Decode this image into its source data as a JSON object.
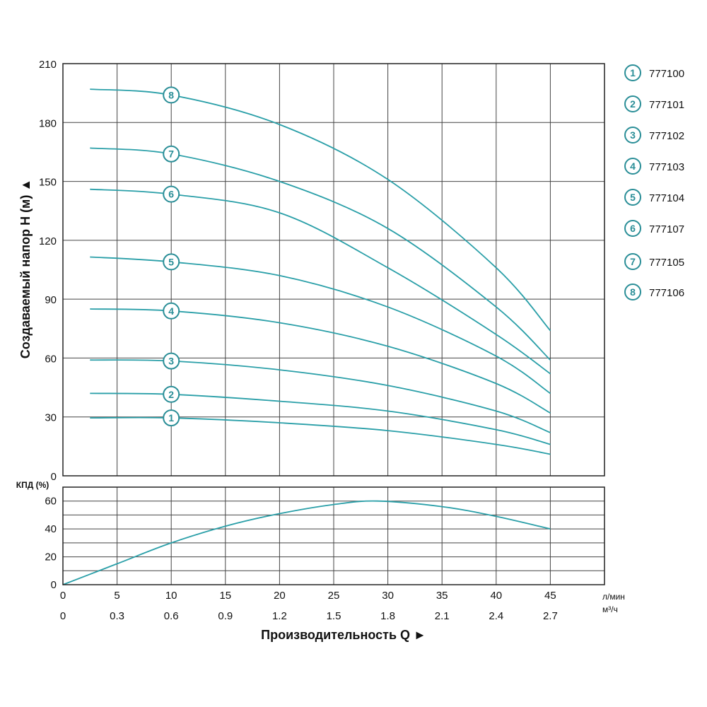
{
  "colors": {
    "curve": "#2a9fa8",
    "marker": "#2a8e97",
    "grid": "#444444",
    "frame": "#222222"
  },
  "chart_data": [
    {
      "type": "line",
      "ylabel": "Создаваемый напор H (м) ▲",
      "ylim": [
        0,
        210
      ],
      "yticks": [
        "0",
        "30",
        "60",
        "90",
        "120",
        "150",
        "180",
        "210"
      ],
      "xlim": [
        0,
        50
      ],
      "grid": true,
      "legend_position": "right",
      "series": [
        {
          "name": "777100",
          "marker": "1",
          "x": [
            2.5,
            10,
            20,
            30,
            40,
            45
          ],
          "y": [
            29.5,
            29.5,
            27,
            23,
            16,
            11
          ]
        },
        {
          "name": "777101",
          "marker": "2",
          "x": [
            2.5,
            10,
            20,
            30,
            40,
            45
          ],
          "y": [
            42,
            41.5,
            38,
            33,
            23.5,
            16
          ]
        },
        {
          "name": "777102",
          "marker": "3",
          "x": [
            2.5,
            10,
            20,
            30,
            40,
            45
          ],
          "y": [
            59,
            58.5,
            54,
            46,
            33,
            22
          ]
        },
        {
          "name": "777103",
          "marker": "4",
          "x": [
            2.5,
            10,
            20,
            30,
            40,
            45
          ],
          "y": [
            85,
            84,
            78,
            66,
            47,
            32
          ]
        },
        {
          "name": "777104",
          "marker": "5",
          "x": [
            2.5,
            10,
            20,
            30,
            40,
            45
          ],
          "y": [
            111.5,
            109,
            102,
            86,
            61,
            42
          ]
        },
        {
          "name": "777107",
          "marker": "6",
          "x": [
            2.5,
            10,
            20,
            30,
            40,
            45
          ],
          "y": [
            146,
            143.5,
            134,
            106,
            72,
            52
          ]
        },
        {
          "name": "777105",
          "marker": "7",
          "x": [
            2.5,
            10,
            20,
            30,
            40,
            45
          ],
          "y": [
            167,
            164,
            150,
            126,
            86,
            59
          ]
        },
        {
          "name": "777106",
          "marker": "8",
          "x": [
            2.5,
            10,
            20,
            30,
            40,
            45
          ],
          "y": [
            197,
            194,
            179,
            151,
            106,
            74
          ]
        }
      ]
    },
    {
      "type": "line",
      "ylabel": "КПД (%)",
      "ylim": [
        0,
        70
      ],
      "yticks": [
        "0",
        "20",
        "40",
        "60"
      ],
      "xlim": [
        0,
        50
      ],
      "grid": true,
      "x_lmin_ticks": [
        "0",
        "5",
        "10",
        "15",
        "20",
        "25",
        "30",
        "35",
        "40",
        "45"
      ],
      "x_lmin_unit": "л/мин",
      "x_m3h_ticks": [
        "0",
        "0.3",
        "0.6",
        "0.9",
        "1.2",
        "1.5",
        "1.8",
        "2.1",
        "2.4",
        "2.7"
      ],
      "x_m3h_unit": "м³/ч",
      "xlabel": "Производительность Q ►",
      "series": [
        {
          "x": [
            0,
            5,
            10,
            15,
            20,
            25,
            29,
            35,
            40,
            45
          ],
          "y": [
            0,
            15,
            30,
            42,
            51,
            57.5,
            60,
            56,
            49,
            40
          ]
        }
      ]
    }
  ]
}
